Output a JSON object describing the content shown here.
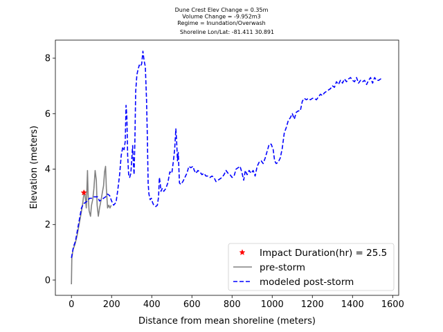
{
  "chart_data": {
    "type": "line",
    "title_lines": [
      "Dune Crest Elev Change = 0.35m",
      "Volume Change = -9.952m3",
      "Regime = Inundation/Overwash",
      "Shoreline Lon/Lat: -81.411 30.891"
    ],
    "xlabel": "Distance from mean shoreline (meters)",
    "ylabel": "Elevation (meters)",
    "xlim": [
      -80,
      1630
    ],
    "ylim": [
      -0.55,
      8.65
    ],
    "xticks": [
      0,
      200,
      400,
      600,
      800,
      1000,
      1200,
      1400,
      1600
    ],
    "yticks": [
      0,
      2,
      4,
      6,
      8
    ],
    "grid": false,
    "legend_position": "lower-right",
    "legend": [
      {
        "label": "Impact Duration(hr) = 25.5",
        "marker": "star",
        "color": "#ff0000"
      },
      {
        "label": "pre-storm",
        "style": "solid",
        "color": "#808080"
      },
      {
        "label": "modeled post-storm",
        "style": "dashed",
        "color": "#0000ff"
      }
    ],
    "marker_point": {
      "x": 62,
      "y": 3.15
    },
    "series": [
      {
        "name": "pre-storm",
        "color": "#808080",
        "style": "solid",
        "points": [
          [
            0,
            -0.15
          ],
          [
            2,
            0.8
          ],
          [
            8,
            1.1
          ],
          [
            18,
            1.3
          ],
          [
            28,
            1.6
          ],
          [
            38,
            2.0
          ],
          [
            48,
            2.4
          ],
          [
            55,
            2.7
          ],
          [
            60,
            3.0
          ],
          [
            65,
            3.2
          ],
          [
            70,
            2.9
          ],
          [
            74,
            2.6
          ],
          [
            80,
            3.95
          ],
          [
            83,
            3.1
          ],
          [
            88,
            2.5
          ],
          [
            95,
            2.3
          ],
          [
            100,
            2.7
          ],
          [
            106,
            2.9
          ],
          [
            112,
            3.3
          ],
          [
            118,
            3.95
          ],
          [
            124,
            3.6
          ],
          [
            128,
            2.7
          ],
          [
            134,
            2.3
          ],
          [
            140,
            2.6
          ],
          [
            148,
            2.9
          ],
          [
            155,
            3.2
          ],
          [
            160,
            3.4
          ],
          [
            165,
            3.9
          ],
          [
            170,
            4.1
          ],
          [
            174,
            3.3
          ],
          [
            180,
            2.6
          ],
          [
            186,
            2.7
          ],
          [
            192,
            2.6
          ],
          [
            198,
            2.7
          ]
        ]
      },
      {
        "name": "modeled post-storm",
        "color": "#0000ff",
        "style": "dashed",
        "points": [
          [
            0,
            0.8
          ],
          [
            10,
            1.2
          ],
          [
            20,
            1.4
          ],
          [
            30,
            1.8
          ],
          [
            40,
            2.2
          ],
          [
            50,
            2.6
          ],
          [
            60,
            2.75
          ],
          [
            70,
            2.8
          ],
          [
            80,
            2.85
          ],
          [
            90,
            2.95
          ],
          [
            100,
            2.95
          ],
          [
            110,
            3.0
          ],
          [
            120,
            3.0
          ],
          [
            130,
            3.0
          ],
          [
            140,
            2.85
          ],
          [
            150,
            2.9
          ],
          [
            160,
            2.95
          ],
          [
            170,
            3.0
          ],
          [
            180,
            3.1
          ],
          [
            190,
            3.05
          ],
          [
            200,
            2.85
          ],
          [
            210,
            2.7
          ],
          [
            222,
            2.8
          ],
          [
            230,
            3.2
          ],
          [
            240,
            3.8
          ],
          [
            248,
            4.5
          ],
          [
            256,
            4.8
          ],
          [
            262,
            4.7
          ],
          [
            268,
            5.0
          ],
          [
            272,
            6.3
          ],
          [
            276,
            5.9
          ],
          [
            280,
            4.5
          ],
          [
            285,
            3.8
          ],
          [
            290,
            3.7
          ],
          [
            296,
            3.85
          ],
          [
            300,
            4.3
          ],
          [
            305,
            4.85
          ],
          [
            308,
            4.3
          ],
          [
            312,
            3.8
          ],
          [
            316,
            5.0
          ],
          [
            320,
            6.8
          ],
          [
            326,
            7.4
          ],
          [
            332,
            7.6
          ],
          [
            338,
            7.75
          ],
          [
            344,
            7.7
          ],
          [
            350,
            7.8
          ],
          [
            356,
            8.25
          ],
          [
            362,
            7.9
          ],
          [
            368,
            7.7
          ],
          [
            374,
            6.5
          ],
          [
            378,
            5.2
          ],
          [
            382,
            3.5
          ],
          [
            386,
            3.1
          ],
          [
            392,
            2.9
          ],
          [
            398,
            2.95
          ],
          [
            404,
            2.8
          ],
          [
            410,
            2.7
          ],
          [
            420,
            2.65
          ],
          [
            428,
            2.7
          ],
          [
            434,
            3.0
          ],
          [
            438,
            3.7
          ],
          [
            442,
            3.5
          ],
          [
            446,
            3.2
          ],
          [
            452,
            3.3
          ],
          [
            460,
            3.2
          ],
          [
            470,
            3.3
          ],
          [
            480,
            3.5
          ],
          [
            490,
            3.9
          ],
          [
            500,
            3.85
          ],
          [
            508,
            4.3
          ],
          [
            514,
            4.7
          ],
          [
            520,
            5.45
          ],
          [
            524,
            5.0
          ],
          [
            528,
            4.3
          ],
          [
            532,
            4.6
          ],
          [
            538,
            3.5
          ],
          [
            545,
            3.45
          ],
          [
            555,
            3.55
          ],
          [
            565,
            3.7
          ],
          [
            575,
            3.85
          ],
          [
            585,
            4.1
          ],
          [
            595,
            4.05
          ],
          [
            605,
            4.1
          ],
          [
            612,
            3.95
          ],
          [
            620,
            3.85
          ],
          [
            630,
            3.95
          ],
          [
            640,
            3.9
          ],
          [
            650,
            3.8
          ],
          [
            660,
            3.85
          ],
          [
            670,
            3.75
          ],
          [
            680,
            3.75
          ],
          [
            690,
            3.7
          ],
          [
            700,
            3.75
          ],
          [
            710,
            3.7
          ],
          [
            720,
            3.55
          ],
          [
            730,
            3.6
          ],
          [
            740,
            3.65
          ],
          [
            750,
            3.7
          ],
          [
            760,
            3.8
          ],
          [
            770,
            3.95
          ],
          [
            780,
            3.85
          ],
          [
            790,
            3.8
          ],
          [
            800,
            3.7
          ],
          [
            810,
            3.75
          ],
          [
            820,
            4.0
          ],
          [
            830,
            4.05
          ],
          [
            840,
            4.1
          ],
          [
            850,
            3.85
          ],
          [
            858,
            3.6
          ],
          [
            866,
            3.95
          ],
          [
            875,
            3.8
          ],
          [
            885,
            3.95
          ],
          [
            895,
            3.85
          ],
          [
            905,
            3.95
          ],
          [
            915,
            3.75
          ],
          [
            925,
            4.1
          ],
          [
            935,
            4.25
          ],
          [
            945,
            4.3
          ],
          [
            955,
            4.2
          ],
          [
            965,
            4.4
          ],
          [
            975,
            4.65
          ],
          [
            985,
            4.9
          ],
          [
            995,
            4.9
          ],
          [
            1005,
            4.7
          ],
          [
            1012,
            4.3
          ],
          [
            1020,
            4.2
          ],
          [
            1030,
            4.25
          ],
          [
            1040,
            4.4
          ],
          [
            1050,
            4.75
          ],
          [
            1060,
            5.3
          ],
          [
            1070,
            5.5
          ],
          [
            1080,
            5.75
          ],
          [
            1090,
            5.85
          ],
          [
            1100,
            6.0
          ],
          [
            1110,
            5.8
          ],
          [
            1120,
            6.05
          ],
          [
            1130,
            6.1
          ],
          [
            1140,
            6.1
          ],
          [
            1150,
            6.45
          ],
          [
            1160,
            6.55
          ],
          [
            1170,
            6.5
          ],
          [
            1180,
            6.55
          ],
          [
            1190,
            6.5
          ],
          [
            1200,
            6.55
          ],
          [
            1210,
            6.55
          ],
          [
            1220,
            6.5
          ],
          [
            1230,
            6.6
          ],
          [
            1240,
            6.7
          ],
          [
            1250,
            6.65
          ],
          [
            1260,
            6.75
          ],
          [
            1270,
            6.8
          ],
          [
            1280,
            6.85
          ],
          [
            1290,
            6.9
          ],
          [
            1300,
            7.0
          ],
          [
            1310,
            6.95
          ],
          [
            1320,
            7.15
          ],
          [
            1330,
            7.05
          ],
          [
            1340,
            7.2
          ],
          [
            1350,
            7.1
          ],
          [
            1360,
            7.25
          ],
          [
            1370,
            7.15
          ],
          [
            1380,
            7.25
          ],
          [
            1390,
            7.3
          ],
          [
            1400,
            7.2
          ],
          [
            1410,
            7.15
          ],
          [
            1420,
            7.3
          ],
          [
            1430,
            7.1
          ],
          [
            1440,
            7.2
          ],
          [
            1450,
            7.15
          ],
          [
            1460,
            7.2
          ],
          [
            1470,
            7.05
          ],
          [
            1480,
            7.2
          ],
          [
            1490,
            7.3
          ],
          [
            1500,
            7.1
          ],
          [
            1510,
            7.3
          ],
          [
            1520,
            7.2
          ],
          [
            1530,
            7.2
          ],
          [
            1540,
            7.25
          ],
          [
            1550,
            7.2
          ]
        ]
      }
    ]
  }
}
